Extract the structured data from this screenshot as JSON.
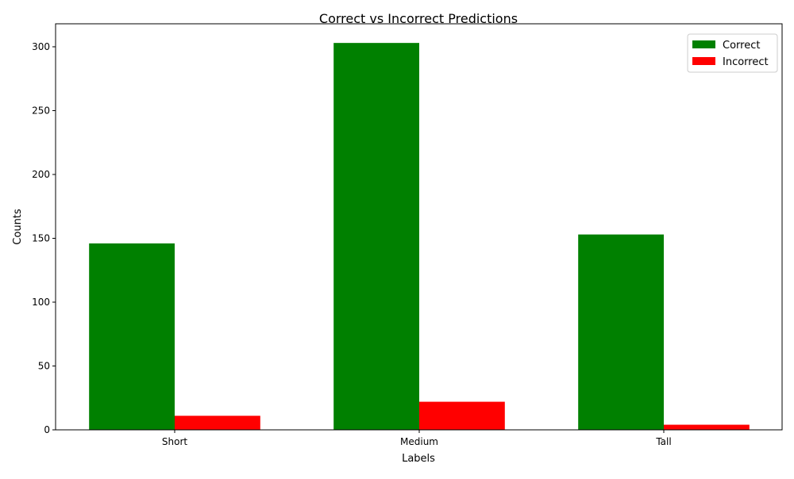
{
  "chart_data": {
    "type": "bar",
    "title": "Correct vs Incorrect Predictions",
    "xlabel": "Labels",
    "ylabel": "Counts",
    "categories": [
      "Short",
      "Medium",
      "Tall"
    ],
    "series": [
      {
        "name": "Correct",
        "values": [
          146,
          303,
          153
        ],
        "color": "#008000"
      },
      {
        "name": "Incorrect",
        "values": [
          11,
          22,
          4
        ],
        "color": "#ff0000"
      }
    ],
    "ylim": [
      0,
      318
    ],
    "yticks": [
      0,
      50,
      100,
      150,
      200,
      250,
      300
    ],
    "grid": false,
    "legend_position": "top-right"
  }
}
